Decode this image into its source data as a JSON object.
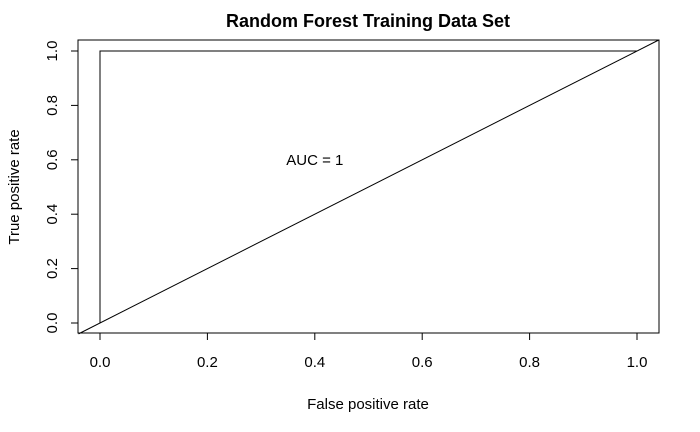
{
  "chart_data": {
    "type": "line",
    "title": "Random Forest Training Data Set",
    "xlabel": "False positive rate",
    "ylabel": "True positive rate",
    "xlim": [
      0,
      1
    ],
    "ylim": [
      0,
      1
    ],
    "xticks": [
      "0.0",
      "0.2",
      "0.4",
      "0.6",
      "0.8",
      "1.0"
    ],
    "yticks": [
      "0.0",
      "0.2",
      "0.4",
      "0.6",
      "0.8",
      "1.0"
    ],
    "grid": false,
    "series": [
      {
        "x": [
          0,
          0,
          1
        ],
        "y": [
          0,
          1,
          1
        ]
      },
      {
        "x": [
          0,
          1
        ],
        "y": [
          0,
          1
        ],
        "style": "abline"
      }
    ],
    "annotations": [
      {
        "text": "AUC = 1",
        "x": 0.4,
        "y": 0.6
      }
    ]
  }
}
